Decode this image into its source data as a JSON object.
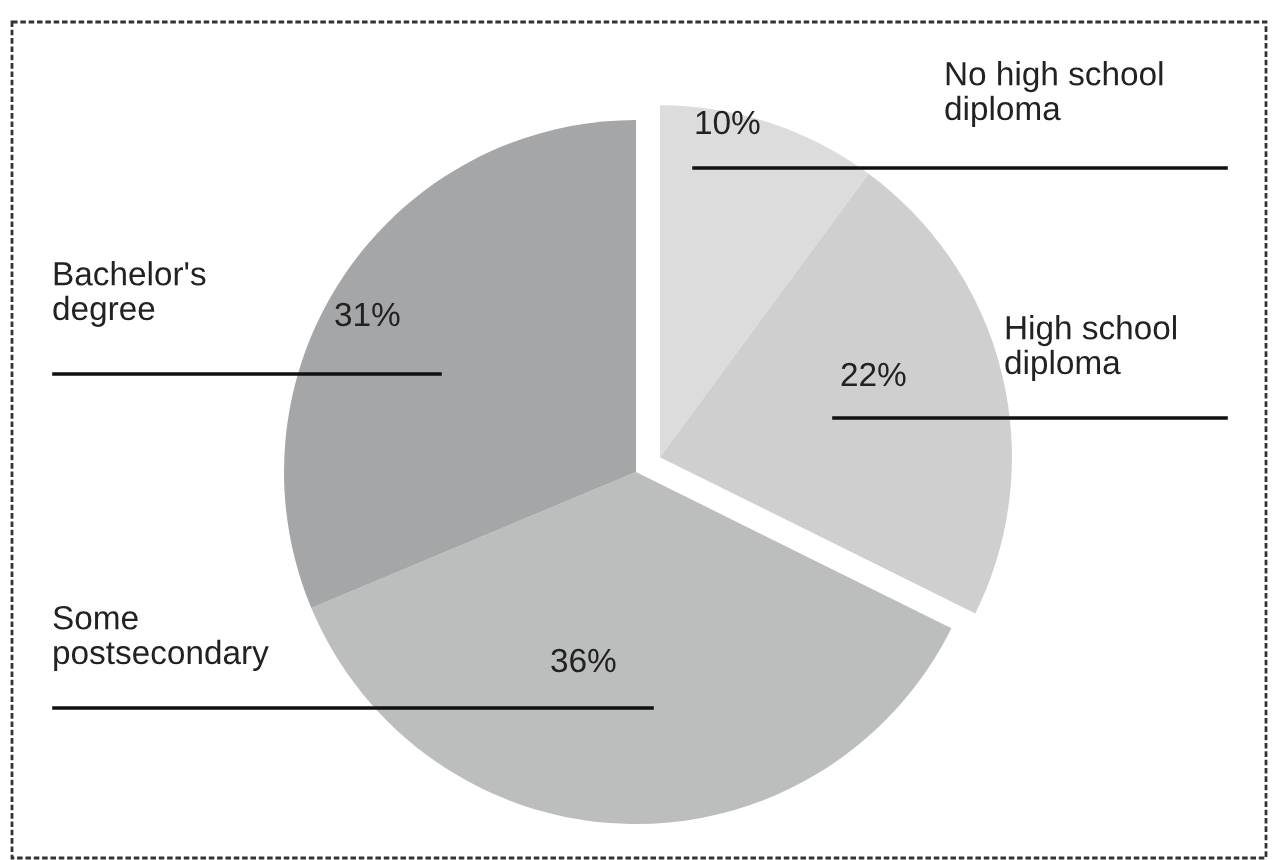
{
  "chart_data": {
    "type": "pie",
    "categories": [
      "No high school diploma",
      "High school diploma",
      "Some postsecondary",
      "Bachelor's degree"
    ],
    "values": [
      10,
      22,
      36,
      31
    ],
    "colors": [
      "#dcdcdc",
      "#cfcfcf",
      "#bcbdbd",
      "#a5a6a8"
    ],
    "value_labels": [
      "10%",
      "22%",
      "36%",
      "31%"
    ]
  }
}
